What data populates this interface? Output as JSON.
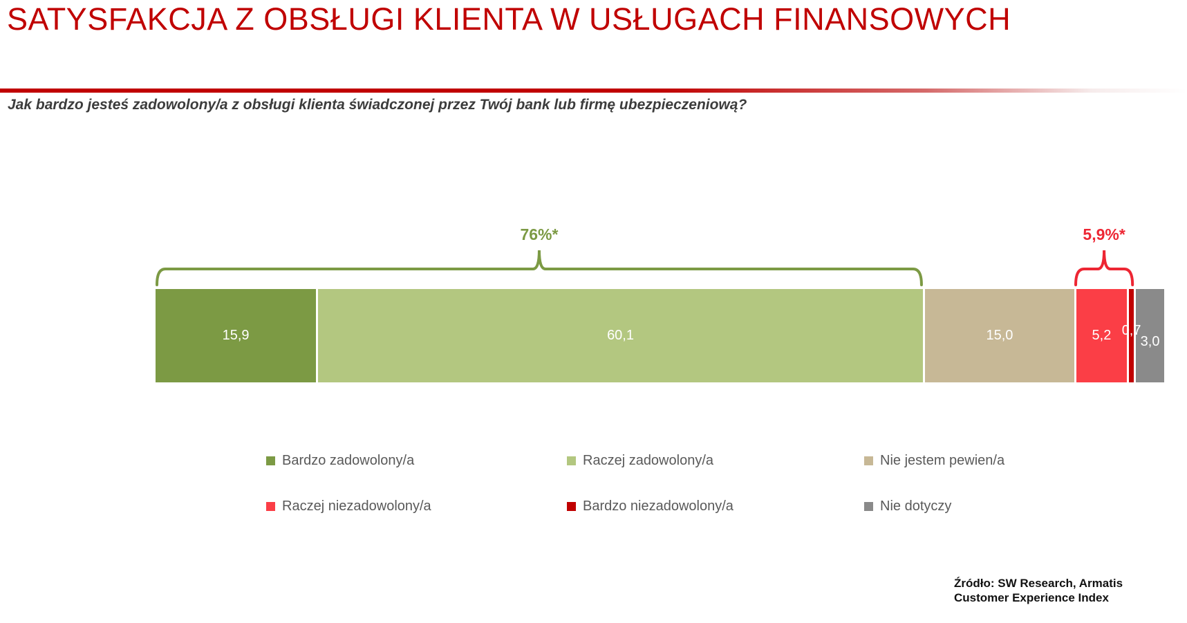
{
  "title": "SATYSFAKCJA Z OBSŁUGI KLIENTA W USŁUGACH FINANSOWYCH",
  "question": "Jak bardzo jesteś zadowolony/a z obsługi klienta świadczonej przez Twój bank lub firmę ubezpieczeniową?",
  "source": {
    "line1": "Źródło: SW Research, Armatis",
    "line2": "Customer Experience Index"
  },
  "accent_color": "#c00000",
  "chart_data": {
    "type": "bar",
    "subtype": "horizontal-stacked-single-bar",
    "values_are_percent": true,
    "title": "SATYSFAKCJA Z OBSŁUGI KLIENTA W USŁUGACH FINANSOWYCH",
    "subtitle": "Jak bardzo jesteś zadowolony/a z obsługi klienta świadczonej przez Twój bank lub firmę ubezpieczeniową?",
    "series": [
      {
        "label": "Bardzo zadowolony/a",
        "value": 15.9,
        "display": "15,9",
        "color": "#7c9a44"
      },
      {
        "label": "Raczej zadowolony/a",
        "value": 60.1,
        "display": "60,1",
        "color": "#b3c780"
      },
      {
        "label": "Nie jestem pewien/a",
        "value": 15.0,
        "display": "15,0",
        "color": "#c7b896"
      },
      {
        "label": "Raczej niezadowolony/a",
        "value": 5.2,
        "display": "5,2",
        "color": "#fb3e46"
      },
      {
        "label": "Bardzo niezadowolony/a",
        "value": 0.7,
        "display": "0,7",
        "color": "#c00000"
      },
      {
        "label": "Nie dotyczy",
        "value": 3.0,
        "display": "3,0",
        "color": "#8a8a8a"
      }
    ],
    "annotations": [
      {
        "text": "76%*",
        "from_segment": 0,
        "to_segment": 1,
        "color": "#7c9a44"
      },
      {
        "text": "5,9%*",
        "from_segment": 3,
        "to_segment": 4,
        "color": "#ed2633"
      }
    ],
    "value_labels": "inside segments, white, comma decimal separator",
    "legend_position": "bottom, 2 rows x 3 columns",
    "grid": false
  }
}
